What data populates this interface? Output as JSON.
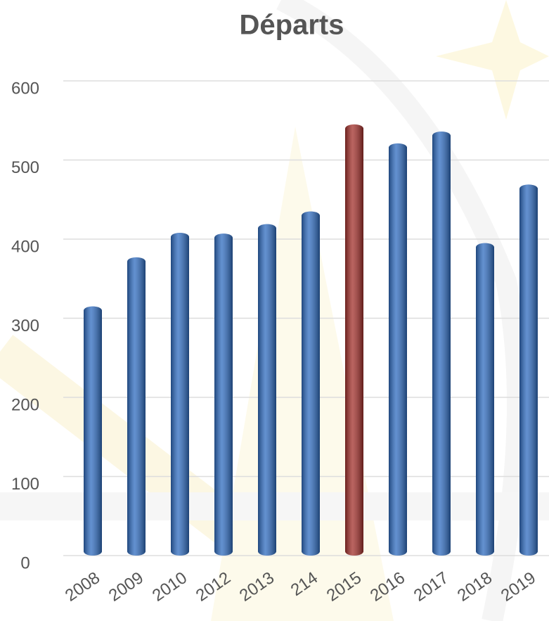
{
  "chart_data": {
    "type": "bar",
    "title": "Départs",
    "categories": [
      "2008",
      "2009",
      "2010",
      "2012",
      "2013",
      "214",
      "2015",
      "2016",
      "2017",
      "2018",
      "2019"
    ],
    "values": [
      315,
      377,
      408,
      407,
      419,
      435,
      545,
      521,
      536,
      395,
      469
    ],
    "colors": [
      "#2f6cc0",
      "#2f6cc0",
      "#2f6cc0",
      "#2f6cc0",
      "#2f6cc0",
      "#2f6cc0",
      "#a3302b",
      "#2f6cc0",
      "#2f6cc0",
      "#2f6cc0",
      "#2f6cc0"
    ],
    "ylim": [
      0,
      600
    ],
    "yticks": [
      0,
      100,
      200,
      300,
      400,
      500,
      600
    ],
    "grid": true
  }
}
